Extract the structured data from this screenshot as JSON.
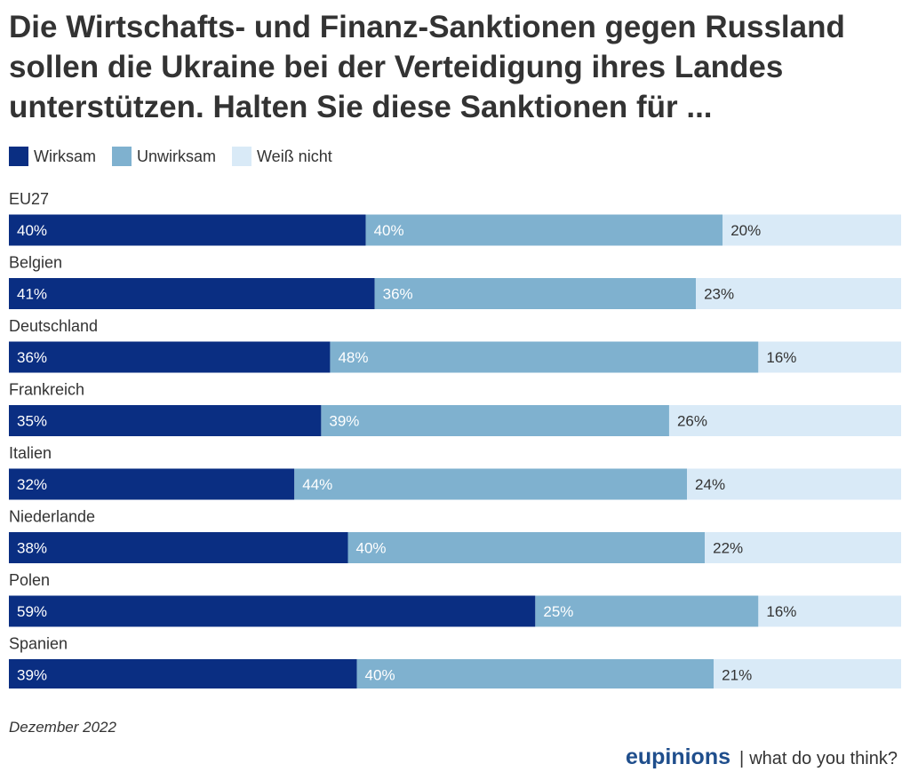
{
  "title": "Die Wirtschafts- und Finanz-Sanktionen gegen Russland sollen die Ukraine bei der Verteidigung ihres Landes unterstützen. Halten Sie diese Sanktionen für ...",
  "legend": [
    {
      "label": "Wirksam",
      "color": "#0a2e82"
    },
    {
      "label": "Unwirksam",
      "color": "#7fb1cf"
    },
    {
      "label": "Weiß nicht",
      "color": "#d9eaf7"
    }
  ],
  "chart_data": {
    "type": "bar",
    "orientation": "horizontal",
    "stacked": true,
    "unit": "%",
    "xlim": [
      0,
      100
    ],
    "categories": [
      "EU27",
      "Belgien",
      "Deutschland",
      "Frankreich",
      "Italien",
      "Niederlande",
      "Polen",
      "Spanien"
    ],
    "series": [
      {
        "name": "Wirksam",
        "color": "#0a2e82",
        "values": [
          40,
          41,
          36,
          35,
          32,
          38,
          59,
          39
        ]
      },
      {
        "name": "Unwirksam",
        "color": "#7fb1cf",
        "values": [
          40,
          36,
          48,
          39,
          44,
          40,
          25,
          40
        ]
      },
      {
        "name": "Weiß nicht",
        "color": "#d9eaf7",
        "values": [
          20,
          23,
          16,
          26,
          24,
          22,
          16,
          21
        ]
      }
    ]
  },
  "footer": {
    "date": "Dezember 2022",
    "brand": "eupinions",
    "separator": "|",
    "tagline": "what do you think?"
  }
}
